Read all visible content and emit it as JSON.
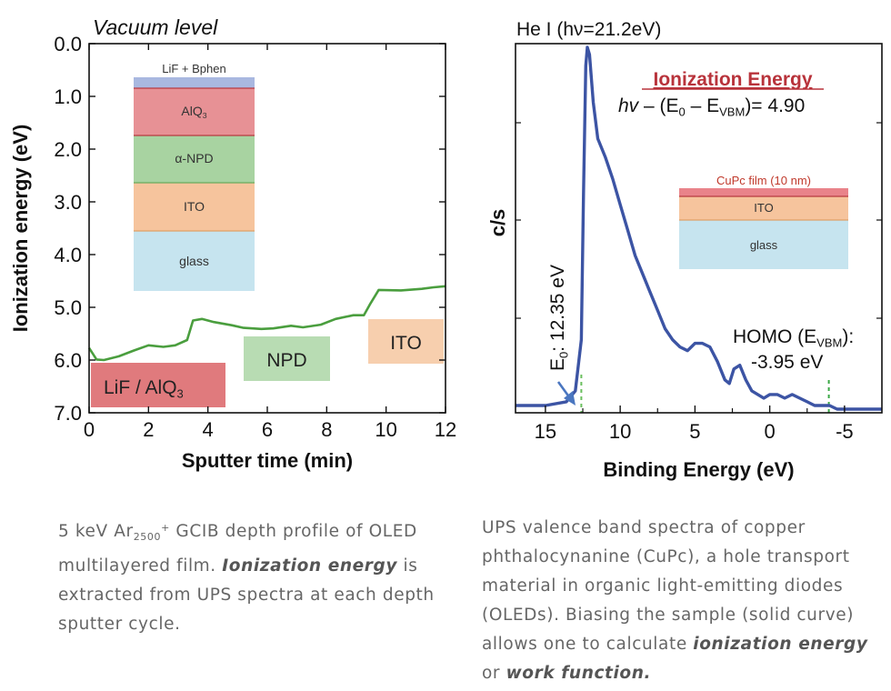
{
  "chart_data": [
    {
      "type": "line",
      "title": "Vacuum level",
      "xlabel": "Sputter time (min)",
      "ylabel": "Ionization energy (eV)",
      "xlim": [
        0,
        12
      ],
      "ylim": [
        0.0,
        7.0
      ],
      "y_inverted": true,
      "xticks": [
        "0",
        "2",
        "4",
        "6",
        "8",
        "10",
        "12"
      ],
      "yticks": [
        "0.0",
        "1.0",
        "2.0",
        "3.0",
        "4.0",
        "5.0",
        "6.0",
        "7.0"
      ],
      "grid": false,
      "line_color": "#4a9e3e",
      "series": [
        {
          "x": [
            0.0,
            0.25,
            0.5,
            1.0,
            1.5,
            2.0,
            2.5,
            2.9,
            3.3,
            3.5,
            3.8,
            4.2,
            4.8,
            5.2,
            5.8,
            6.2,
            6.8,
            7.2,
            7.8,
            8.3,
            8.9,
            9.25,
            9.45,
            9.75,
            10.5,
            11.2,
            11.6,
            12.0
          ],
          "y": [
            5.77,
            5.99,
            6.0,
            5.93,
            5.82,
            5.72,
            5.75,
            5.72,
            5.62,
            5.25,
            5.22,
            5.28,
            5.34,
            5.39,
            5.41,
            5.4,
            5.35,
            5.38,
            5.33,
            5.22,
            5.15,
            5.15,
            4.95,
            4.67,
            4.68,
            4.65,
            4.62,
            4.6
          ]
        }
      ],
      "region_labels": [
        {
          "text": "LiF / AlQ3",
          "color": "#e07a7d"
        },
        {
          "text": "NPD",
          "color": "#b8dcb3"
        },
        {
          "text": "ITO",
          "color": "#f7cfae"
        }
      ],
      "inset_stack": {
        "layers": [
          {
            "label": "LiF + Bphen",
            "color": "#a9b8e0"
          },
          {
            "label": "AlQ3",
            "color": "#e79195"
          },
          {
            "label": "α-NPD",
            "color": "#a8d3a1"
          },
          {
            "label": "ITO",
            "color": "#f6c49d"
          },
          {
            "label": "glass",
            "color": "#c6e4ef"
          }
        ]
      }
    },
    {
      "type": "line",
      "title": "He I (hν=21.2eV)",
      "xlabel": "Binding Energy (eV)",
      "ylabel": "c/s",
      "xlim": [
        17,
        -7.5
      ],
      "x_inverted": true,
      "xticks": [
        "15",
        "10",
        "5",
        "0",
        "-5"
      ],
      "grid": false,
      "line_color": "#3c54a4",
      "series": [
        {
          "x": [
            17.0,
            15.0,
            13.6,
            13.0,
            12.6,
            12.45,
            12.3,
            12.2,
            12.05,
            11.8,
            11.5,
            11.0,
            10.5,
            10.0,
            9.5,
            9.0,
            8.5,
            8.0,
            7.5,
            7.0,
            6.5,
            6.0,
            5.5,
            5.0,
            4.5,
            4.0,
            3.5,
            3.0,
            2.7,
            2.4,
            2.0,
            1.6,
            1.2,
            0.8,
            0.4,
            0.0,
            -0.5,
            -1.0,
            -1.5,
            -2.0,
            -2.5,
            -3.0,
            -3.5,
            -4.0,
            -4.5,
            -5.0,
            -6.0,
            -7.5
          ],
          "y": [
            0.02,
            0.02,
            0.03,
            0.06,
            0.2,
            0.6,
            0.95,
            1.0,
            0.98,
            0.85,
            0.75,
            0.7,
            0.64,
            0.57,
            0.5,
            0.43,
            0.38,
            0.33,
            0.28,
            0.23,
            0.2,
            0.18,
            0.17,
            0.19,
            0.19,
            0.18,
            0.14,
            0.09,
            0.08,
            0.12,
            0.13,
            0.09,
            0.06,
            0.05,
            0.04,
            0.05,
            0.05,
            0.04,
            0.05,
            0.04,
            0.03,
            0.02,
            0.02,
            0.02,
            0.01,
            0.01,
            0.01,
            0.01
          ]
        }
      ],
      "annotations": {
        "heading": "Ionization Energy",
        "formula": "hv – (E0 – EVBM)= 4.90",
        "e0_label": "E0: 12.35 eV",
        "homo_label_1": "HOMO (EVBM):",
        "homo_label_2": "-3.95 eV",
        "e0_x": 12.6,
        "evbm_x": -3.95,
        "heading_color": "#b8333b"
      },
      "inset_stack": {
        "layers": [
          {
            "label": "CuPc film (10 nm)",
            "color": "#e9838a"
          },
          {
            "label": "ITO",
            "color": "#f6c49d"
          },
          {
            "label": "glass",
            "color": "#c6e4ef"
          }
        ]
      }
    }
  ],
  "captions": {
    "left": {
      "t1": "5 keV Ar",
      "sub": "2500",
      "sup": "+",
      "t2": " GCIB depth profile of OLED multilayered film. ",
      "bold": "Ionization energy",
      "t3": " is extracted from UPS spectra at each depth sputter cycle."
    },
    "right": {
      "t1": "UPS valence band spectra of copper phthalocynanine (CuPc), a hole transport material in organic light-emitting diodes (OLEDs). Biasing the sample (solid curve) allows one to calculate ",
      "bold1": "ionization energy",
      "t2": " or ",
      "bold2": "work function."
    }
  }
}
